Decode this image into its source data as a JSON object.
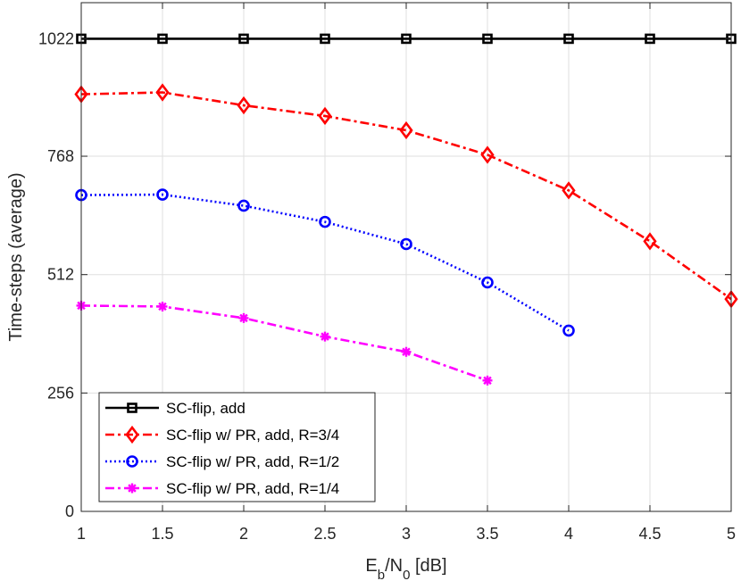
{
  "chart_data": {
    "type": "line",
    "title": "",
    "xlabel": {
      "main": "E",
      "sub1": "b",
      "mid": "/N",
      "sub2": "0",
      "tail": " [dB]"
    },
    "ylabel": "Time-steps (average)",
    "xlim": [
      1,
      5
    ],
    "ylim": [
      0,
      1100
    ],
    "xticks": [
      1,
      1.5,
      2,
      2.5,
      3,
      3.5,
      4,
      4.5,
      5
    ],
    "xtick_labels": [
      "1",
      "1.5",
      "2",
      "2.5",
      "3",
      "3.5",
      "4",
      "4.5",
      "5"
    ],
    "yticks": [
      0,
      256,
      512,
      768,
      1022
    ],
    "ytick_labels": [
      "0",
      "256",
      "512",
      "768",
      "1022"
    ],
    "grid": true,
    "legend_position": "bottom-left",
    "series": [
      {
        "name": "SC-flip, add",
        "color": "#000000",
        "dash": "",
        "marker": "square",
        "x": [
          1,
          1.5,
          2,
          2.5,
          3,
          3.5,
          4,
          4.5,
          5
        ],
        "y": [
          1022,
          1022,
          1022,
          1022,
          1022,
          1022,
          1022,
          1022,
          1022
        ]
      },
      {
        "name": "SC-flip w/ PR, add, R=3/4",
        "color": "#ff0000",
        "dash": "10,4,3,4",
        "marker": "diamond",
        "x": [
          1,
          1.5,
          2,
          2.5,
          3,
          3.5,
          4,
          4.5,
          5
        ],
        "y": [
          902,
          906,
          878,
          855,
          824,
          771,
          694,
          584,
          459
        ]
      },
      {
        "name": "SC-flip w/ PR, add, R=1/2",
        "color": "#0000ff",
        "dash": "2,3",
        "marker": "circle",
        "x": [
          1,
          1.5,
          2,
          2.5,
          3,
          3.5,
          4
        ],
        "y": [
          684,
          685,
          661,
          626,
          578,
          495,
          391
        ]
      },
      {
        "name": "SC-flip w/ PR, add, R=1/4",
        "color": "#ff00ff",
        "dash": "10,4,3,4",
        "marker": "asterisk",
        "x": [
          1,
          1.5,
          2,
          2.5,
          3,
          3.5
        ],
        "y": [
          445,
          443,
          418,
          378,
          345,
          283
        ]
      }
    ]
  }
}
